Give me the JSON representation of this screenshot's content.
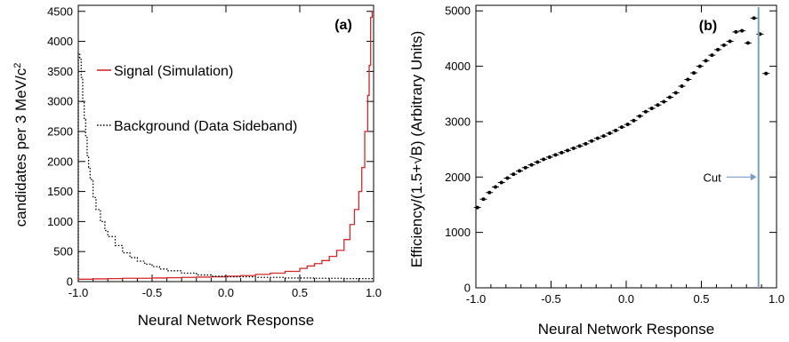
{
  "chart_data": [
    {
      "panel": "(a)",
      "type": "line",
      "xlabel": "Neural Network Response",
      "ylabel": "candidates per 3 MeV/c",
      "ylabel_superscript": "2",
      "xlim": [
        -1.0,
        1.0
      ],
      "ylim": [
        0,
        4600
      ],
      "xticks": [
        -1.0,
        -0.5,
        0.0,
        0.5,
        1.0
      ],
      "xtick_labels": [
        "-1.0",
        "-0.5",
        "0.0",
        "0.5",
        "1.0"
      ],
      "yticks": [
        0,
        500,
        1000,
        1500,
        2000,
        2500,
        3000,
        3500,
        4000,
        4500
      ],
      "ytick_labels": [
        "0",
        "500",
        "1000",
        "1500",
        "2000",
        "2500",
        "3000",
        "3500",
        "4000",
        "4500"
      ],
      "legend_position": "upper-left",
      "series": [
        {
          "name": "Signal (Simulation)",
          "color": "#d62728",
          "dash": "solid",
          "x": [
            -1.0,
            -0.9,
            -0.8,
            -0.7,
            -0.6,
            -0.5,
            -0.4,
            -0.3,
            -0.2,
            -0.1,
            0.0,
            0.1,
            0.2,
            0.3,
            0.4,
            0.5,
            0.55,
            0.6,
            0.65,
            0.7,
            0.75,
            0.8,
            0.84,
            0.87,
            0.9,
            0.92,
            0.94,
            0.96,
            0.97,
            0.98,
            0.99,
            1.0
          ],
          "y": [
            40,
            45,
            50,
            55,
            55,
            60,
            65,
            70,
            75,
            80,
            90,
            100,
            120,
            140,
            170,
            220,
            260,
            300,
            350,
            420,
            520,
            700,
            950,
            1200,
            1500,
            1900,
            2500,
            3100,
            3600,
            4400,
            4500,
            4500
          ]
        },
        {
          "name": "Background (Data Sideband)",
          "color": "#000000",
          "dash": "dotted",
          "x": [
            -1.0,
            -0.99,
            -0.98,
            -0.97,
            -0.96,
            -0.95,
            -0.94,
            -0.93,
            -0.92,
            -0.9,
            -0.88,
            -0.85,
            -0.82,
            -0.8,
            -0.75,
            -0.7,
            -0.65,
            -0.6,
            -0.55,
            -0.5,
            -0.45,
            -0.4,
            -0.3,
            -0.2,
            -0.1,
            0.0,
            0.2,
            0.4,
            0.6,
            0.8,
            1.0
          ],
          "y": [
            3800,
            3700,
            3400,
            3000,
            2700,
            2400,
            2100,
            1900,
            1700,
            1400,
            1200,
            1000,
            850,
            750,
            600,
            480,
            400,
            340,
            290,
            250,
            210,
            180,
            140,
            110,
            90,
            80,
            70,
            60,
            55,
            50,
            50
          ]
        }
      ]
    },
    {
      "panel": "(b)",
      "type": "scatter",
      "xlabel": "Neural Network Response",
      "ylabel": "Efficiency/(1.5+√B) (Arbitrary Units)",
      "xlim": [
        -1.0,
        1.0
      ],
      "ylim": [
        0,
        5100
      ],
      "xticks": [
        -1.0,
        -0.5,
        0.0,
        0.5,
        1.0
      ],
      "xtick_labels": [
        "-1.0",
        "-0.5",
        "0.0",
        "0.5",
        "1.0"
      ],
      "yticks": [
        0,
        1000,
        2000,
        3000,
        4000,
        5000
      ],
      "ytick_labels": [
        "0",
        "1000",
        "2000",
        "3000",
        "4000",
        "5000"
      ],
      "cut": {
        "label": "Cut",
        "x": 0.88
      },
      "series": [
        {
          "color": "#000000",
          "x": [
            -0.99,
            -0.95,
            -0.91,
            -0.87,
            -0.83,
            -0.79,
            -0.75,
            -0.71,
            -0.67,
            -0.63,
            -0.59,
            -0.55,
            -0.51,
            -0.47,
            -0.43,
            -0.39,
            -0.35,
            -0.31,
            -0.27,
            -0.23,
            -0.19,
            -0.15,
            -0.11,
            -0.07,
            -0.03,
            0.01,
            0.05,
            0.09,
            0.13,
            0.17,
            0.21,
            0.25,
            0.29,
            0.33,
            0.37,
            0.41,
            0.45,
            0.49,
            0.53,
            0.57,
            0.61,
            0.65,
            0.69,
            0.73,
            0.77,
            0.81,
            0.85,
            0.89,
            0.93
          ],
          "y": [
            1450,
            1600,
            1720,
            1820,
            1900,
            1980,
            2050,
            2110,
            2170,
            2220,
            2270,
            2320,
            2360,
            2400,
            2440,
            2480,
            2520,
            2560,
            2600,
            2650,
            2700,
            2740,
            2790,
            2840,
            2900,
            2950,
            3020,
            3100,
            3180,
            3240,
            3300,
            3360,
            3440,
            3520,
            3640,
            3760,
            3880,
            4000,
            4100,
            4200,
            4300,
            4380,
            4450,
            4620,
            4640,
            4420,
            4870,
            4580,
            3870
          ]
        }
      ]
    }
  ]
}
